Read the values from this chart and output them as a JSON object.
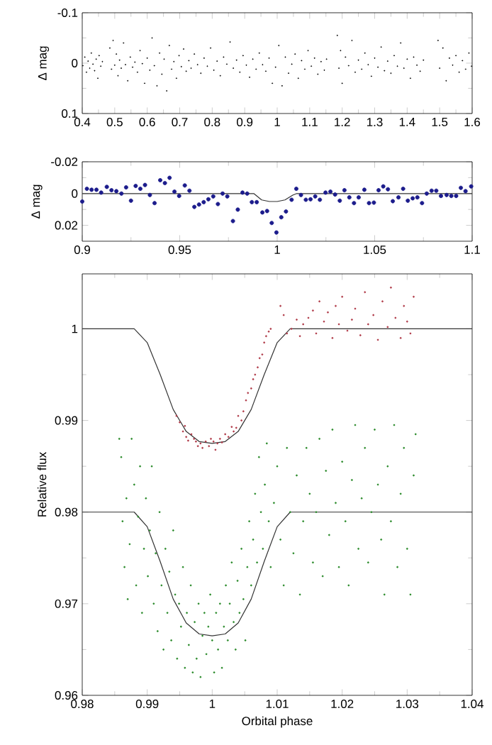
{
  "chart_data": [
    {
      "type": "scatter",
      "ylabel": "Δ mag",
      "xlim": [
        0.4,
        1.6
      ],
      "ylim": [
        0.1,
        -0.1
      ],
      "xticks": [
        0.4,
        0.5,
        0.6,
        0.7,
        0.8,
        0.9,
        1,
        1.1,
        1.2,
        1.3,
        1.4,
        1.5,
        1.6
      ],
      "yticks": [
        -0.1,
        0,
        0.1
      ],
      "marker": "circle",
      "series": [
        {
          "color": "#000000",
          "x": [
            0.402,
            0.408,
            0.413,
            0.418,
            0.423,
            0.428,
            0.433,
            0.438,
            0.443,
            0.448,
            0.452,
            0.457,
            0.462,
            0.485,
            0.49,
            0.495,
            0.5,
            0.505,
            0.51,
            0.515,
            0.52,
            0.527,
            0.533,
            0.54,
            0.548,
            0.555,
            0.562,
            0.57,
            0.578,
            0.585,
            0.592,
            0.6,
            0.608,
            0.615,
            0.622,
            0.63,
            0.638,
            0.645,
            0.652,
            0.66,
            0.668,
            0.675,
            0.682,
            0.69,
            0.698,
            0.705,
            0.712,
            0.72,
            0.728,
            0.735,
            0.745,
            0.755,
            0.765,
            0.775,
            0.785,
            0.795,
            0.805,
            0.815,
            0.825,
            0.835,
            0.845,
            0.855,
            0.865,
            0.875,
            0.885,
            0.895,
            0.905,
            0.915,
            0.925,
            0.935,
            0.945,
            0.955,
            0.965,
            0.975,
            0.985,
            0.995,
            1.005,
            1.015,
            1.025,
            1.035,
            1.045,
            1.055,
            1.065,
            1.075,
            1.085,
            1.095,
            1.105,
            1.115,
            1.125,
            1.135,
            1.145,
            1.152,
            1.185,
            1.19,
            1.195,
            1.2,
            1.21,
            1.22,
            1.23,
            1.24,
            1.25,
            1.26,
            1.27,
            1.28,
            1.29,
            1.3,
            1.31,
            1.32,
            1.33,
            1.34,
            1.35,
            1.36,
            1.37,
            1.38,
            1.39,
            1.4,
            1.41,
            1.42,
            1.43,
            1.44,
            1.45,
            1.495,
            1.5,
            1.51,
            1.52,
            1.53,
            1.54,
            1.55,
            1.56,
            1.57,
            1.58,
            1.59,
            1.598
          ],
          "values": [
            0.005,
            -0.012,
            0.018,
            -0.004,
            0.01,
            -0.02,
            0.002,
            0.015,
            -0.008,
            0.03,
            -0.015,
            0.006,
            -0.003,
            -0.03,
            0.012,
            -0.045,
            0.004,
            -0.018,
            0.025,
            -0.006,
            0.01,
            -0.04,
            0.003,
            0.035,
            -0.012,
            0.008,
            -0.002,
            0.018,
            -0.025,
            0.001,
            0.04,
            -0.01,
            0.014,
            -0.05,
            0.005,
            0.045,
            -0.02,
            0.022,
            -0.008,
            0.055,
            -0.035,
            0.012,
            -0.003,
            0.03,
            -0.015,
            0.007,
            -0.028,
            0.016,
            -0.005,
            0.01,
            -0.018,
            0.003,
            0.02,
            -0.01,
            0.006,
            -0.03,
            0.014,
            -0.004,
            0.025,
            -0.012,
            0.002,
            -0.042,
            0.01,
            -0.006,
            0.018,
            -0.015,
            0.004,
            0.028,
            -0.008,
            0.012,
            -0.02,
            0.003,
            0.016,
            -0.01,
            0.04,
            0.008,
            -0.035,
            0.045,
            -0.012,
            0.02,
            0.002,
            -0.018,
            0.03,
            -0.005,
            0.012,
            -0.025,
            0.006,
            -0.01,
            0.022,
            -0.003,
            0.014,
            -0.008,
            -0.055,
            0.01,
            -0.025,
            0.04,
            -0.012,
            0.005,
            -0.045,
            0.018,
            -0.006,
            0.012,
            -0.02,
            0.003,
            0.026,
            -0.01,
            0.008,
            -0.032,
            0.015,
            -0.004,
            0.02,
            -0.015,
            0.006,
            -0.04,
            0.01,
            -0.008,
            0.03,
            -0.012,
            0.004,
            0.016,
            -0.006,
            -0.045,
            0.01,
            -0.03,
            0.035,
            -0.01,
            0.004,
            -0.015,
            0.018,
            -0.005,
            0.012,
            -0.02,
            0.006
          ]
        }
      ]
    },
    {
      "type": "scatter",
      "ylabel": "Δ mag",
      "xlim": [
        0.9,
        1.1
      ],
      "ylim": [
        0.03,
        -0.02
      ],
      "xticks": [
        0.9,
        0.95,
        1,
        1.05,
        1.1
      ],
      "yticks": [
        -0.02,
        0,
        0.02
      ],
      "marker": "circle",
      "series": [
        {
          "color": "#1c1c8c",
          "x": [
            0.9,
            0.9024,
            0.9048,
            0.9073,
            0.9097,
            0.9126,
            0.915,
            0.9175,
            0.9201,
            0.9225,
            0.925,
            0.9274,
            0.9298,
            0.9322,
            0.9347,
            0.9371,
            0.94,
            0.9424,
            0.9448,
            0.9473,
            0.9497,
            0.9526,
            0.955,
            0.9575,
            0.9599,
            0.9623,
            0.9647,
            0.9672,
            0.9696,
            0.972,
            0.9744,
            0.9773,
            0.9798,
            0.9822,
            0.9846,
            0.987,
            0.9895,
            0.9924,
            0.9948,
            0.9972,
            0.9996,
            1.0021,
            1.0045,
            1.0074,
            1.0098,
            1.0122,
            1.0147,
            1.0171,
            1.0195,
            1.0219,
            1.0248,
            1.0273,
            1.0297,
            1.0321,
            1.0345,
            1.037,
            1.0394,
            1.0418,
            1.0447,
            1.0471,
            1.0496,
            1.052,
            1.0544,
            1.0568,
            1.0593,
            1.0622,
            1.0646,
            1.067,
            1.0695,
            1.0719,
            1.0743,
            1.0767,
            1.0792,
            1.0816,
            1.084,
            1.0869,
            1.0893,
            1.0918,
            1.0942,
            1.0966,
            1.0995
          ],
          "values": [
            0.005,
            -0.003,
            -0.0024,
            -0.0024,
            -0.0006,
            -0.0042,
            -0.0021,
            -0.0015,
            0,
            -0.0039,
            0.0045,
            -0.0048,
            -0.003,
            -0.0054,
            0.0009,
            0.006,
            -0.0084,
            -0.0066,
            -0.0099,
            -0.0012,
            0.0015,
            -0.0051,
            -0.0018,
            0.0084,
            0.0069,
            0.0054,
            0.0036,
            0.0018,
            0.0066,
            0,
            0.0018,
            0.0173,
            0.0101,
            -0.0006,
            0,
            0.0054,
            0.0054,
            0.0119,
            0.011,
            0.0185,
            0.0245,
            0.0149,
            0.0113,
            0.0039,
            -0.003,
            0.0009,
            0.0039,
            0.0036,
            0.0018,
            0.0039,
            -0.0006,
            -0.0012,
            0.0006,
            0.0045,
            -0.0021,
            0.0024,
            0.006,
            0.0024,
            -0.0024,
            0.006,
            0.0057,
            -0.0021,
            -0.0045,
            -0.0027,
            0.0048,
            0.0024,
            -0.003,
            0.0045,
            0.003,
            0.0024,
            0.006,
            0,
            -0.0018,
            -0.0018,
            0.0015,
            0.0009,
            0.0015,
            0.0015,
            -0.0036,
            -0.0015,
            -0.0045
          ]
        },
        {
          "type": "line",
          "marker": "none",
          "color": "#333333",
          "x": [
            0.9,
            0.988,
            0.992,
            0.996,
            1.0,
            1.004,
            1.008,
            1.01,
            1.1
          ],
          "values": [
            0,
            0,
            0.004,
            0.005,
            0.005,
            0.004,
            0.001,
            0,
            0
          ]
        }
      ]
    },
    {
      "type": "scatter",
      "xlabel": "Orbital phase",
      "ylabel": "Relative flux",
      "xlim": [
        0.98,
        1.04
      ],
      "ylim": [
        0.96,
        1.006
      ],
      "xticks": [
        0.98,
        0.99,
        1,
        1.01,
        1.02,
        1.03,
        1.04
      ],
      "yticks": [
        0.96,
        0.97,
        0.98,
        0.99,
        1
      ],
      "marker": "circle",
      "series": [
        {
          "color": "#b03a48",
          "x": [
            0.9945,
            0.995,
            0.9955,
            0.9958,
            0.996,
            0.9963,
            0.9968,
            0.9972,
            0.9975,
            0.9978,
            0.9982,
            0.9985,
            0.999,
            0.9995,
            0.9998,
            1.0002,
            1.0005,
            1.0008,
            1.0012,
            1.0015,
            1.002,
            1.0025,
            1.003,
            1.0033,
            1.0037,
            1.004,
            1.0045,
            1.0048,
            1.0052,
            1.0055,
            1.006,
            1.0063,
            1.0066,
            1.007,
            1.0073,
            1.0077,
            1.008,
            1.0083,
            1.0087,
            1.009,
            1.0105,
            1.011,
            1.0115,
            1.0122,
            1.013,
            1.0135,
            1.014,
            1.0148,
            1.0155,
            1.016,
            1.0165,
            1.0172,
            1.0178,
            1.0185,
            1.019,
            1.0195,
            1.02,
            1.0208,
            1.0215,
            1.022,
            1.0228,
            1.0235,
            1.024,
            1.0248,
            1.0255,
            1.0262,
            1.027,
            1.0275,
            1.0282,
            1.029,
            1.0295,
            1.03,
            1.0305,
            1.031
          ],
          "values": [
            0.9905,
            0.9898,
            0.9888,
            0.9894,
            0.9882,
            0.9878,
            0.9885,
            0.988,
            0.9877,
            0.9872,
            0.9875,
            0.987,
            0.9877,
            0.9872,
            0.988,
            0.9877,
            0.9868,
            0.9875,
            0.988,
            0.9876,
            0.9885,
            0.9882,
            0.9893,
            0.9888,
            0.9892,
            0.9905,
            0.99,
            0.991,
            0.9922,
            0.993,
            0.9935,
            0.9945,
            0.995,
            0.9958,
            0.9968,
            0.9972,
            0.9985,
            0.9992,
            0.9997,
            1.0,
            1.0025,
            1.0015,
            0.9995,
            1.0,
            1.001,
            0.9992,
            1.0005,
            1.0012,
            1.002,
            0.9995,
            1.003,
            1.0008,
            1.0018,
            0.999,
            1.0025,
            1.0005,
            1.0035,
            0.9998,
            1.001,
            1.0022,
            0.9993,
            1.004,
            1.0005,
            1.0015,
            0.9988,
            1.003,
            1.0002,
            1.0045,
            1.0012,
            0.999,
            1.0025,
            1.0008,
            0.9995,
            1.0035
          ]
        },
        {
          "color": "#2a8a2a",
          "x": [
            0.9857,
            0.986,
            0.9862,
            0.9865,
            0.9868,
            0.987,
            0.9873,
            0.9876,
            0.988,
            0.9883,
            0.9886,
            0.9889,
            0.9892,
            0.9895,
            0.9898,
            0.9901,
            0.9904,
            0.9907,
            0.991,
            0.9913,
            0.9916,
            0.9919,
            0.9922,
            0.9925,
            0.9928,
            0.9931,
            0.9934,
            0.9937,
            0.994,
            0.9943,
            0.9946,
            0.9949,
            0.9952,
            0.9955,
            0.9958,
            0.9961,
            0.9964,
            0.9967,
            0.997,
            0.9973,
            0.9976,
            0.9979,
            0.9982,
            0.9985,
            0.9988,
            0.9991,
            0.9994,
            0.9997,
            1.0,
            1.0003,
            1.0006,
            1.0009,
            1.0012,
            1.0015,
            1.0018,
            1.0021,
            1.0024,
            1.0027,
            1.003,
            1.0033,
            1.0036,
            1.0039,
            1.0042,
            1.0045,
            1.0048,
            1.0051,
            1.0054,
            1.0057,
            1.006,
            1.0063,
            1.0066,
            1.0069,
            1.0072,
            1.0075,
            1.0078,
            1.0081,
            1.0084,
            1.0087,
            1.009,
            1.0095,
            1.01,
            1.0105,
            1.011,
            1.0115,
            1.012,
            1.0125,
            1.013,
            1.0135,
            1.014,
            1.0145,
            1.015,
            1.0155,
            1.016,
            1.0165,
            1.017,
            1.0175,
            1.018,
            1.0185,
            1.019,
            1.0195,
            1.02,
            1.0205,
            1.021,
            1.0215,
            1.022,
            1.0225,
            1.023,
            1.0235,
            1.024,
            1.0245,
            1.025,
            1.0255,
            1.026,
            1.0265,
            1.027,
            1.0275,
            1.028,
            1.0285,
            1.029,
            1.0295,
            1.03,
            1.0305,
            1.031,
            1.0313
          ],
          "values": [
            0.988,
            0.986,
            0.979,
            0.974,
            0.9815,
            0.9705,
            0.9765,
            0.988,
            0.983,
            0.972,
            0.9795,
            0.985,
            0.969,
            0.976,
            0.9815,
            0.973,
            0.978,
            0.985,
            0.97,
            0.9755,
            0.967,
            0.98,
            0.972,
            0.965,
            0.976,
            0.969,
            0.9735,
            0.966,
            0.978,
            0.971,
            0.964,
            0.97,
            0.9675,
            0.974,
            0.963,
            0.969,
            0.9655,
            0.972,
            0.9625,
            0.968,
            0.964,
            0.97,
            0.962,
            0.9665,
            0.969,
            0.9645,
            0.9675,
            0.971,
            0.966,
            0.9625,
            0.969,
            0.965,
            0.97,
            0.963,
            0.9675,
            0.972,
            0.966,
            0.97,
            0.9745,
            0.968,
            0.965,
            0.9725,
            0.969,
            0.976,
            0.9705,
            0.966,
            0.974,
            0.979,
            0.972,
            0.977,
            0.982,
            0.9745,
            0.986,
            0.98,
            0.976,
            0.983,
            0.9875,
            0.979,
            0.974,
            0.981,
            0.985,
            0.977,
            0.972,
            0.987,
            0.98,
            0.9755,
            0.984,
            0.971,
            0.979,
            0.987,
            0.982,
            0.9745,
            0.98,
            0.988,
            0.973,
            0.9845,
            0.9775,
            0.989,
            0.981,
            0.974,
            0.9855,
            0.979,
            0.972,
            0.9835,
            0.9895,
            0.976,
            0.9815,
            0.987,
            0.9745,
            0.98,
            0.989,
            0.983,
            0.977,
            0.971,
            0.985,
            0.979,
            0.9895,
            0.974,
            0.982,
            0.987,
            0.976,
            0.971,
            0.984,
            0.9885
          ]
        },
        {
          "type": "line",
          "marker": "none",
          "color": "#333333",
          "x": [
            0.98,
            0.988,
            0.99,
            0.992,
            0.994,
            0.996,
            0.998,
            1.0,
            1.002,
            1.004,
            1.006,
            1.008,
            1.01,
            1.012,
            1.04
          ],
          "values": [
            1,
            1,
            0.9985,
            0.995,
            0.9912,
            0.9888,
            0.9877,
            0.9875,
            0.9877,
            0.9888,
            0.9912,
            0.995,
            0.9985,
            1,
            1
          ]
        },
        {
          "type": "line",
          "marker": "none",
          "color": "#333333",
          "x": [
            0.98,
            0.988,
            0.99,
            0.992,
            0.994,
            0.996,
            0.998,
            1.0,
            1.002,
            1.004,
            1.006,
            1.008,
            1.01,
            1.012,
            1.04
          ],
          "values": [
            0.98,
            0.98,
            0.9784,
            0.9746,
            0.9705,
            0.9679,
            0.9667,
            0.9665,
            0.9667,
            0.9679,
            0.9705,
            0.9746,
            0.9784,
            0.98,
            0.98
          ]
        }
      ]
    }
  ]
}
